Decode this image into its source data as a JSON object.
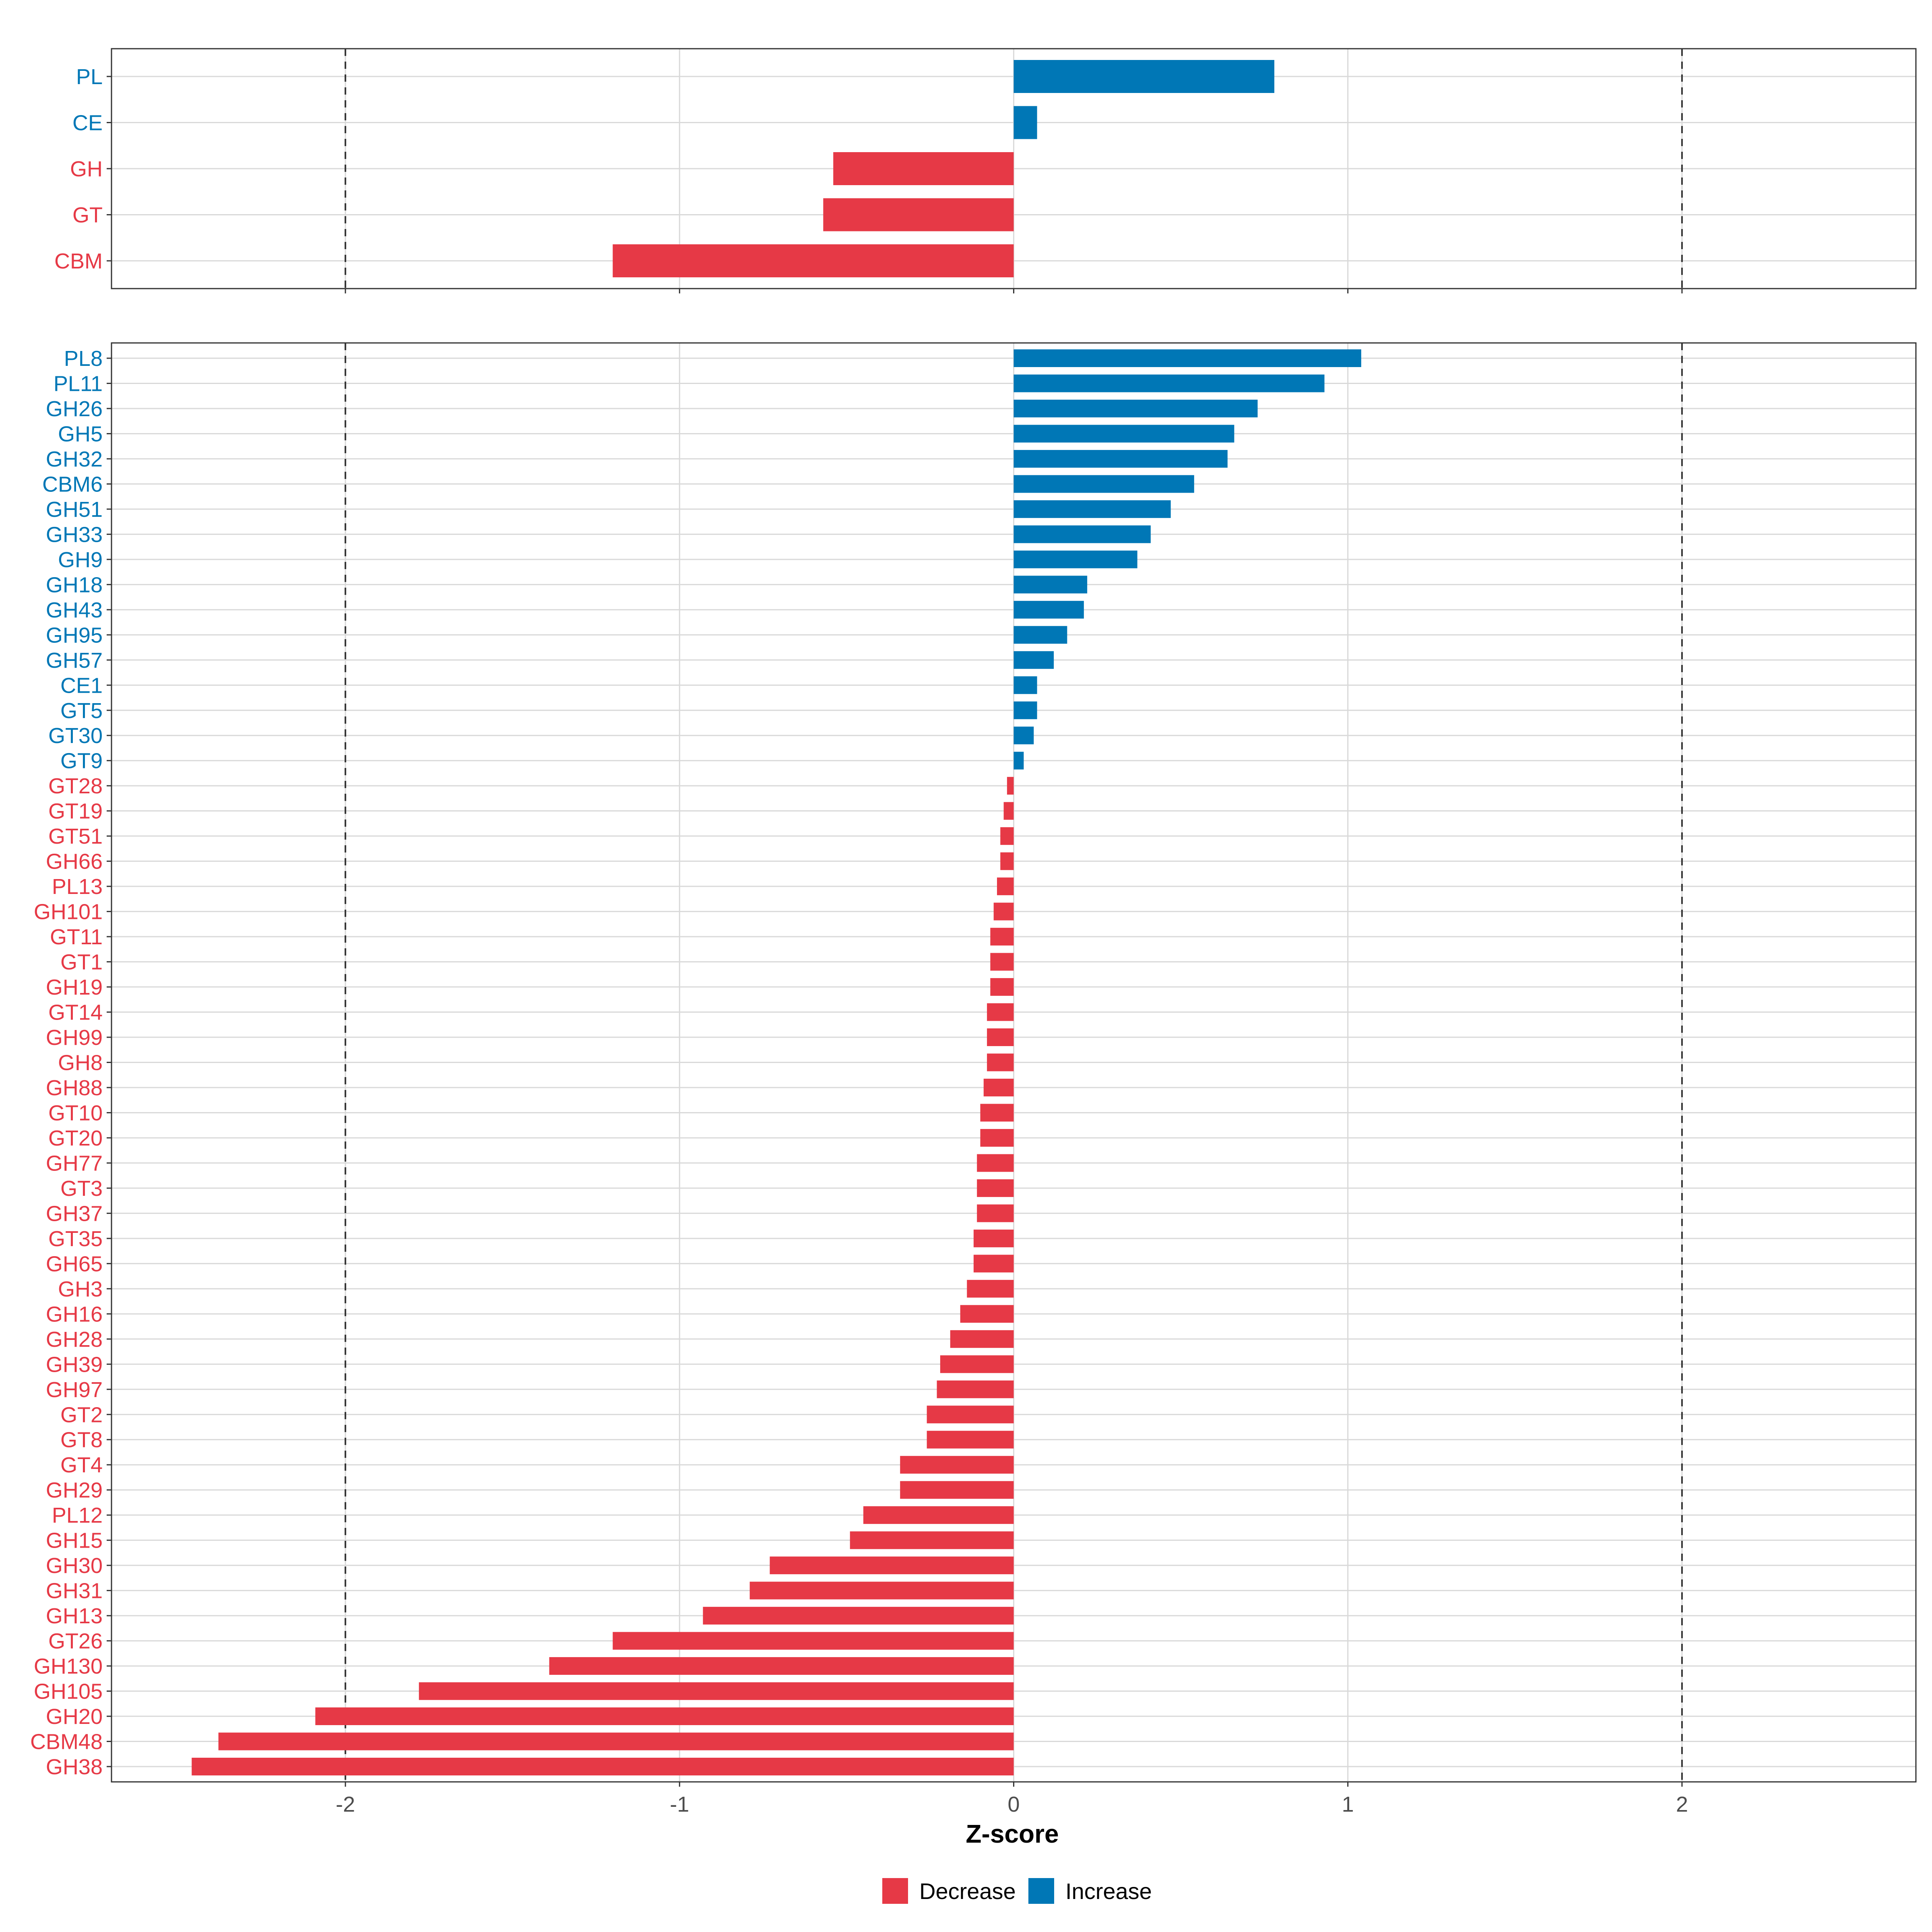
{
  "colors": {
    "decrease": "#E63946",
    "increase": "#0077B6",
    "grid": "#D9D9D9",
    "panel_border": "#333333",
    "ref_line": "#333333",
    "tick_text": "#4D4D4D",
    "axis_title": "#000000"
  },
  "chart_data": [
    {
      "type": "bar",
      "orientation": "horizontal",
      "panel": "top",
      "categories": [
        "PL",
        "CE",
        "GH",
        "GT",
        "CBM"
      ],
      "values": [
        0.78,
        0.07,
        -0.54,
        -0.57,
        -1.2
      ],
      "xlim": [
        -2.7,
        2.7
      ],
      "reference_lines": [
        -2,
        2
      ]
    },
    {
      "type": "bar",
      "orientation": "horizontal",
      "panel": "bottom",
      "categories": [
        "PL8",
        "PL11",
        "GH26",
        "GH5",
        "GH32",
        "CBM6",
        "GH51",
        "GH33",
        "GH9",
        "GH18",
        "GH43",
        "GH95",
        "GH57",
        "CE1",
        "GT5",
        "GT30",
        "GT9",
        "GT28",
        "GT19",
        "GT51",
        "GH66",
        "PL13",
        "GH101",
        "GT11",
        "GT1",
        "GH19",
        "GT14",
        "GH99",
        "GH8",
        "GH88",
        "GT10",
        "GT20",
        "GH77",
        "GT3",
        "GH37",
        "GT35",
        "GH65",
        "GH3",
        "GH16",
        "GH28",
        "GH39",
        "GH97",
        "GT2",
        "GT8",
        "GT4",
        "GH29",
        "PL12",
        "GH15",
        "GH30",
        "GH31",
        "GH13",
        "GT26",
        "GH130",
        "GH105",
        "GH20",
        "CBM48",
        "GH38"
      ],
      "values": [
        1.04,
        0.93,
        0.73,
        0.66,
        0.64,
        0.54,
        0.47,
        0.41,
        0.37,
        0.22,
        0.21,
        0.16,
        0.12,
        0.07,
        0.07,
        0.06,
        0.03,
        -0.02,
        -0.03,
        -0.04,
        -0.04,
        -0.05,
        -0.06,
        -0.07,
        -0.07,
        -0.07,
        -0.08,
        -0.08,
        -0.08,
        -0.09,
        -0.1,
        -0.1,
        -0.11,
        -0.11,
        -0.11,
        -0.12,
        -0.12,
        -0.14,
        -0.16,
        -0.19,
        -0.22,
        -0.23,
        -0.26,
        -0.26,
        -0.34,
        -0.34,
        -0.45,
        -0.49,
        -0.73,
        -0.79,
        -0.93,
        -1.2,
        -1.39,
        -1.78,
        -2.09,
        -2.38,
        -2.46
      ],
      "xlim": [
        -2.7,
        2.7
      ],
      "reference_lines": [
        -2,
        2
      ],
      "xticks": [
        "-2",
        "-1",
        "0",
        "1",
        "2"
      ],
      "xlabel": "Z-score"
    }
  ],
  "legend": {
    "placement": "bottom",
    "items": [
      {
        "label": "Decrease",
        "key": "decrease"
      },
      {
        "label": "Increase",
        "key": "increase"
      }
    ]
  }
}
